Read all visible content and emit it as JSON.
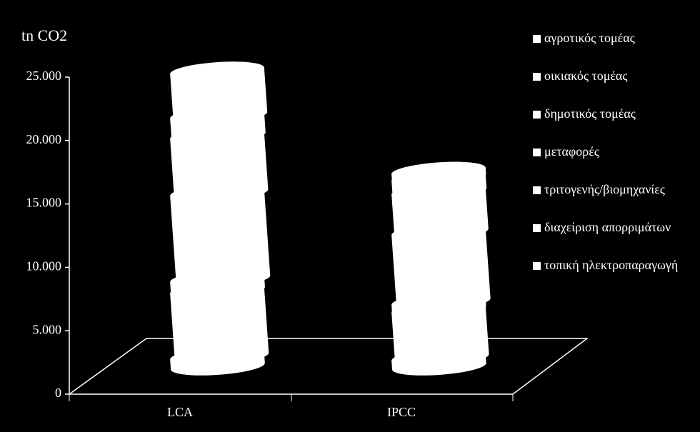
{
  "chart_data": {
    "type": "cylinder-stacked",
    "title": "tn CO2",
    "categories": [
      "LCA",
      "IPCC"
    ],
    "series": [
      {
        "name": "αγροτικός τομέας",
        "color": "#ffffff",
        "values": [
          800,
          700
        ]
      },
      {
        "name": "οικιακός τομέας",
        "color": "#ffffff",
        "values": [
          5200,
          3800
        ]
      },
      {
        "name": "δημοτικός τομέας",
        "color": "#ffffff",
        "values": [
          900,
          600
        ]
      },
      {
        "name": "μεταφορές",
        "color": "#ffffff",
        "values": [
          6800,
          5500
        ]
      },
      {
        "name": "τριτογενής/βιομηχανίες",
        "color": "#ffffff",
        "values": [
          4500,
          3200
        ]
      },
      {
        "name": "διαχείριση απορριμάτων",
        "color": "#ffffff",
        "values": [
          1600,
          1100
        ]
      },
      {
        "name": "τοπική ηλεκτροπαραγωγή",
        "color": "#ffffff",
        "values": [
          3500,
          500
        ]
      }
    ],
    "ylim": [
      0,
      25000
    ],
    "yticks": [
      0,
      {
        "value": 5000,
        "label": "5.000"
      },
      {
        "value": 10000,
        "label": "10.000"
      },
      {
        "value": 15000,
        "label": "15.000"
      },
      {
        "value": 20000,
        "label": "20.000"
      },
      {
        "value": 25000,
        "label": "25.000"
      }
    ]
  }
}
